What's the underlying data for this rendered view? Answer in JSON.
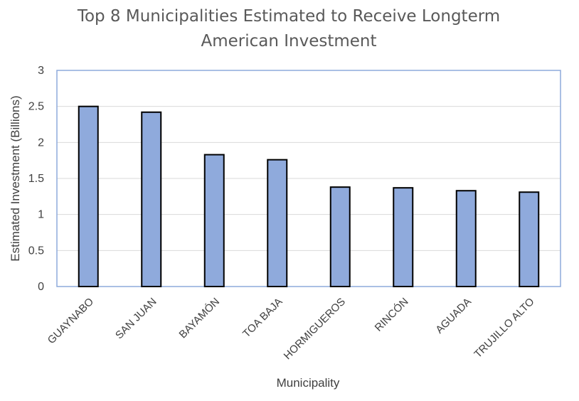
{
  "chart_data": {
    "type": "bar",
    "title_lines": [
      "Top 8 Municipalities Estimated to Receive Longterm",
      "American Investment"
    ],
    "xlabel": "Municipality",
    "ylabel": "Estimated Investment (Billions)",
    "categories": [
      "GUAYNABO",
      "SAN JUAN",
      "BAYAMÓN",
      "TOA BAJA",
      "HORMIGUEROS",
      "RINCÓN",
      "AGUADA",
      "TRUJILLO ALTO"
    ],
    "values": [
      2.5,
      2.42,
      1.83,
      1.76,
      1.38,
      1.37,
      1.33,
      1.31
    ],
    "ylim": [
      0,
      3
    ],
    "yticks": [
      "0",
      "0.5",
      "1",
      "1.5",
      "2",
      "2.5",
      "3"
    ],
    "grid": true,
    "colors": {
      "bar_fill": "#8faadc",
      "bar_stroke": "#000000",
      "frame": "#8eaadb",
      "grid": "#d9d9d9"
    }
  }
}
